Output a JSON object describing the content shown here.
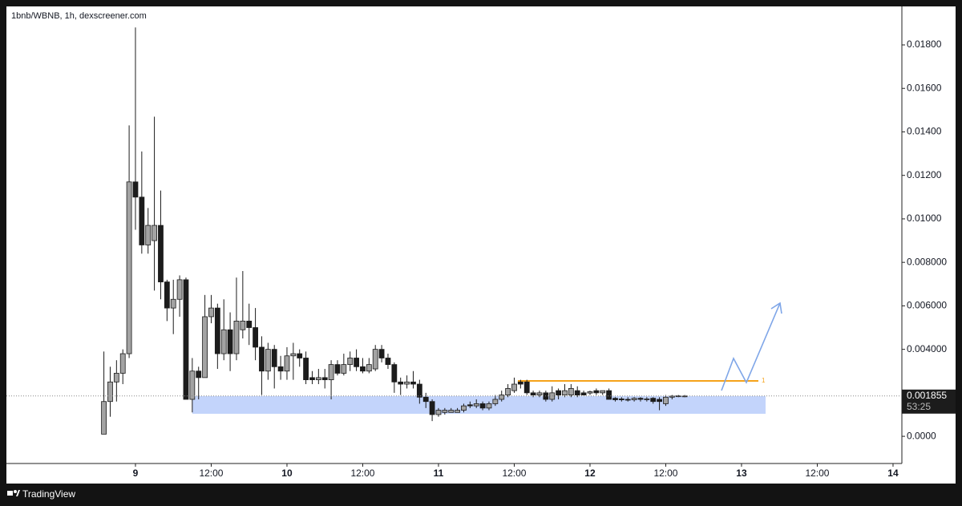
{
  "branding": "TradingView",
  "chart_data": {
    "type": "candlestick",
    "title": "1bnb/WBNB, 1h, dexscreener.com",
    "x": [
      -5,
      -4,
      -3,
      -2,
      -1,
      0,
      1,
      2,
      3,
      4,
      5,
      6,
      7,
      8,
      9,
      10,
      11,
      12,
      13,
      14,
      15,
      16,
      17,
      18,
      19,
      20,
      21,
      22,
      23,
      24,
      25,
      26,
      27,
      28,
      29,
      30,
      31,
      32,
      33,
      34,
      35,
      36,
      37,
      38,
      39,
      40,
      41,
      42,
      43,
      44,
      45,
      46,
      47,
      48,
      49,
      50,
      51,
      52,
      53,
      54,
      55,
      56,
      57,
      58,
      59,
      60,
      61,
      62,
      63,
      64,
      65,
      66,
      67,
      68,
      69,
      70,
      71,
      72,
      73,
      74,
      75,
      76,
      77,
      78,
      79,
      80,
      81,
      82,
      83,
      84,
      85,
      86,
      87
    ],
    "open": [
      0.0001,
      0.0016,
      0.0025,
      0.0029,
      0.0038,
      0.0117,
      0.011,
      0.0088,
      0.009,
      0.0097,
      0.0071,
      0.0059,
      0.0063,
      0.0072,
      0.0017,
      0.003,
      0.0027,
      0.0055,
      0.0059,
      0.0038,
      0.0049,
      0.0038,
      0.0049,
      0.0053,
      0.005,
      0.0041,
      0.003,
      0.004,
      0.0032,
      0.003,
      0.0037,
      0.0038,
      0.0036,
      0.0027,
      0.0026,
      0.0027,
      0.0026,
      0.0033,
      0.0029,
      0.0033,
      0.0036,
      0.0032,
      0.003,
      0.0031,
      0.004,
      0.0036,
      0.0033,
      0.0025,
      0.0024,
      0.0025,
      0.0024,
      0.0018,
      0.0016,
      0.001,
      0.0011,
      0.0011,
      0.0011,
      0.0012,
      0.00145,
      0.0014,
      0.0015,
      0.0013,
      0.0015,
      0.0017,
      0.0019,
      0.0021,
      0.0025,
      0.0025,
      0.002,
      0.0019,
      0.002,
      0.0017,
      0.0021,
      0.0019,
      0.0019,
      0.0021,
      0.002,
      0.00199,
      0.0021,
      0.002,
      0.0021,
      0.00175,
      0.00172,
      0.0017,
      0.00168,
      0.00175,
      0.0017,
      0.00175,
      0.0017,
      0.0015,
      0.0018,
      0.00183,
      0.00185
    ],
    "high": [
      0.0039,
      0.0032,
      0.0035,
      0.004,
      0.0143,
      0.0188,
      0.0131,
      0.0105,
      0.0147,
      0.0113,
      0.0072,
      0.0072,
      0.0074,
      0.0073,
      0.0036,
      0.0032,
      0.0065,
      0.0065,
      0.0061,
      0.0063,
      0.0057,
      0.0073,
      0.0076,
      0.0061,
      0.0059,
      0.0046,
      0.0043,
      0.0042,
      0.0037,
      0.0041,
      0.0043,
      0.004,
      0.0039,
      0.003,
      0.0031,
      0.0031,
      0.0035,
      0.0035,
      0.0038,
      0.0039,
      0.004,
      0.0036,
      0.0036,
      0.0042,
      0.0042,
      0.0038,
      0.0034,
      0.0027,
      0.0028,
      0.003,
      0.0026,
      0.002,
      0.0017,
      0.0013,
      0.0013,
      0.0013,
      0.0013,
      0.0015,
      0.0016,
      0.0017,
      0.0016,
      0.0016,
      0.0019,
      0.0021,
      0.0024,
      0.0027,
      0.0026,
      0.0026,
      0.0021,
      0.0021,
      0.0021,
      0.0023,
      0.0022,
      0.0024,
      0.0024,
      0.0023,
      0.0021,
      0.0021,
      0.0022,
      0.0021,
      0.0022,
      0.0018,
      0.0018,
      0.0018,
      0.0018,
      0.0018,
      0.0018,
      0.0018,
      0.0018,
      0.0019,
      0.0019,
      0.0019,
      0.0019
    ],
    "low": [
      0.0001,
      0.0009,
      0.0016,
      0.0024,
      0.0036,
      0.0095,
      0.0084,
      0.0084,
      0.0067,
      0.0063,
      0.0053,
      0.0047,
      0.0055,
      0.0017,
      0.0011,
      0.0017,
      0.0027,
      0.0052,
      0.0031,
      0.0035,
      0.003,
      0.0035,
      0.0045,
      0.0042,
      0.0035,
      0.0019,
      0.0026,
      0.0022,
      0.0026,
      0.0026,
      0.0026,
      0.0032,
      0.0024,
      0.0024,
      0.0024,
      0.0022,
      0.0017,
      0.0028,
      0.0028,
      0.003,
      0.003,
      0.0029,
      0.0029,
      0.003,
      0.0034,
      0.0031,
      0.002,
      0.0019,
      0.0022,
      0.0022,
      0.0015,
      0.0013,
      0.0007,
      0.0009,
      0.001,
      0.0011,
      0.0011,
      0.0011,
      0.0013,
      0.0013,
      0.0012,
      0.0012,
      0.0014,
      0.0016,
      0.0018,
      0.002,
      0.0022,
      0.0019,
      0.0018,
      0.0018,
      0.0016,
      0.0016,
      0.0017,
      0.0018,
      0.0018,
      0.0018,
      0.0019,
      0.0019,
      0.0019,
      0.0019,
      0.0017,
      0.0016,
      0.0016,
      0.0016,
      0.0016,
      0.0016,
      0.0016,
      0.0015,
      0.0012,
      0.0014,
      0.0017,
      0.0018,
      0.0018
    ],
    "close": [
      0.0016,
      0.0025,
      0.0029,
      0.0038,
      0.0117,
      0.011,
      0.0088,
      0.0097,
      0.0097,
      0.0071,
      0.0059,
      0.0063,
      0.0072,
      0.0017,
      0.003,
      0.0027,
      0.0055,
      0.0059,
      0.0038,
      0.0049,
      0.0038,
      0.0053,
      0.0053,
      0.005,
      0.0041,
      0.003,
      0.004,
      0.0032,
      0.003,
      0.0037,
      0.0038,
      0.0036,
      0.0026,
      0.0026,
      0.0027,
      0.0026,
      0.0033,
      0.0029,
      0.0033,
      0.0036,
      0.0032,
      0.003,
      0.0033,
      0.004,
      0.0036,
      0.0033,
      0.0025,
      0.0024,
      0.0025,
      0.0024,
      0.0018,
      0.0016,
      0.001,
      0.0012,
      0.0012,
      0.0012,
      0.0012,
      0.0014,
      0.0014,
      0.0015,
      0.0013,
      0.0015,
      0.0017,
      0.0019,
      0.0022,
      0.0024,
      0.0024,
      0.002,
      0.0019,
      0.002,
      0.0017,
      0.002,
      0.0019,
      0.0021,
      0.0022,
      0.0019,
      0.0019,
      0.00205,
      0.002,
      0.0021,
      0.0017,
      0.00168,
      0.00168,
      0.00168,
      0.00175,
      0.0017,
      0.00172,
      0.0016,
      0.0016,
      0.0018,
      0.00185,
      0.00186,
      0.001855
    ],
    "up_color": "#a3a3a3",
    "down_color": "#1c1c1c",
    "wick_color": "#1c1c1c",
    "xlim": [
      -20.44,
      121.4
    ],
    "ylim": [
      -0.00125,
      0.01977
    ],
    "xticks": [
      {
        "value": 0,
        "label": "9"
      },
      {
        "value": 12,
        "label": "12:00"
      },
      {
        "value": 24,
        "label": "10"
      },
      {
        "value": 36,
        "label": "12:00"
      },
      {
        "value": 48,
        "label": "11"
      },
      {
        "value": 60,
        "label": "12:00"
      },
      {
        "value": 72,
        "label": "12"
      },
      {
        "value": 84,
        "label": "12:00"
      },
      {
        "value": 96,
        "label": "13"
      },
      {
        "value": 108,
        "label": "12:00"
      },
      {
        "value": 120,
        "label": "14"
      }
    ],
    "yticks": [
      {
        "value": 0,
        "label": "0.0000"
      },
      {
        "value": 0.004,
        "label": "0.004000"
      },
      {
        "value": 0.006,
        "label": "0.006000"
      },
      {
        "value": 0.008,
        "label": "0.008000"
      },
      {
        "value": 0.01,
        "label": "0.01000"
      },
      {
        "value": 0.012,
        "label": "0.01200"
      },
      {
        "value": 0.014,
        "label": "0.01400"
      },
      {
        "value": 0.016,
        "label": "0.01600"
      },
      {
        "value": 0.018,
        "label": "0.01800"
      }
    ],
    "last_price": {
      "value": 0.001855,
      "label": "0.001855"
    },
    "countdown": "53:25",
    "annotation": "1"
  }
}
